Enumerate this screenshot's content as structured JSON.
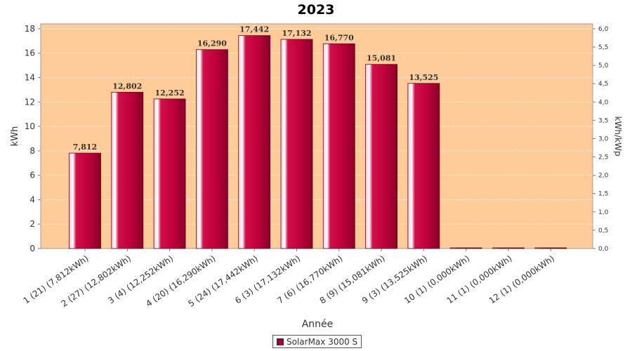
{
  "chart_data": {
    "type": "bar",
    "title": "2023",
    "xlabel": "Année",
    "ylabel": "kWh",
    "y2label": "kWh/kWp",
    "ylim": [
      0,
      18.4
    ],
    "y2lim": [
      0,
      6.133
    ],
    "yticks": [
      0,
      2,
      4,
      6,
      8,
      10,
      12,
      14,
      16,
      18
    ],
    "y2ticks": [
      "0,0",
      "0,5",
      "1,0",
      "1,5",
      "2,0",
      "2,5",
      "3,0",
      "3,5",
      "4,0",
      "4,5",
      "5,0",
      "5,5",
      "6,0"
    ],
    "grid": true,
    "legend_position": "bottom-center",
    "colors": {
      "bar": "#b5003a",
      "bar_light": "#f3b6c9",
      "plot_bg": "#ffcc99"
    },
    "categories": [
      "1 (21)  (7,812kWh)",
      "2 (27)  (12,802kWh)",
      "3 (4)  (12,252kWh)",
      "4 (20)  (16,290kWh)",
      "5 (24)  (17,442kWh)",
      "6 (3)  (17,132kWh)",
      "7 (6)  (16,770kWh)",
      "8 (9)  (15,081kWh)",
      "9 (3)  (13,525kWh)",
      "10 (1)  (0,000kWh)",
      "11 (1)  (0,000kWh)",
      "12 (1)  (0,000kWh)"
    ],
    "series": [
      {
        "name": "SolarMax 3000 S",
        "values": [
          7.812,
          12.802,
          12.252,
          16.29,
          17.442,
          17.132,
          16.77,
          15.081,
          13.525,
          0,
          0,
          0
        ],
        "labels": [
          "7,812",
          "12,802",
          "12,252",
          "16,290",
          "17,442",
          "17,132",
          "16,770",
          "15,081",
          "13,525",
          "",
          "",
          ""
        ]
      }
    ]
  }
}
